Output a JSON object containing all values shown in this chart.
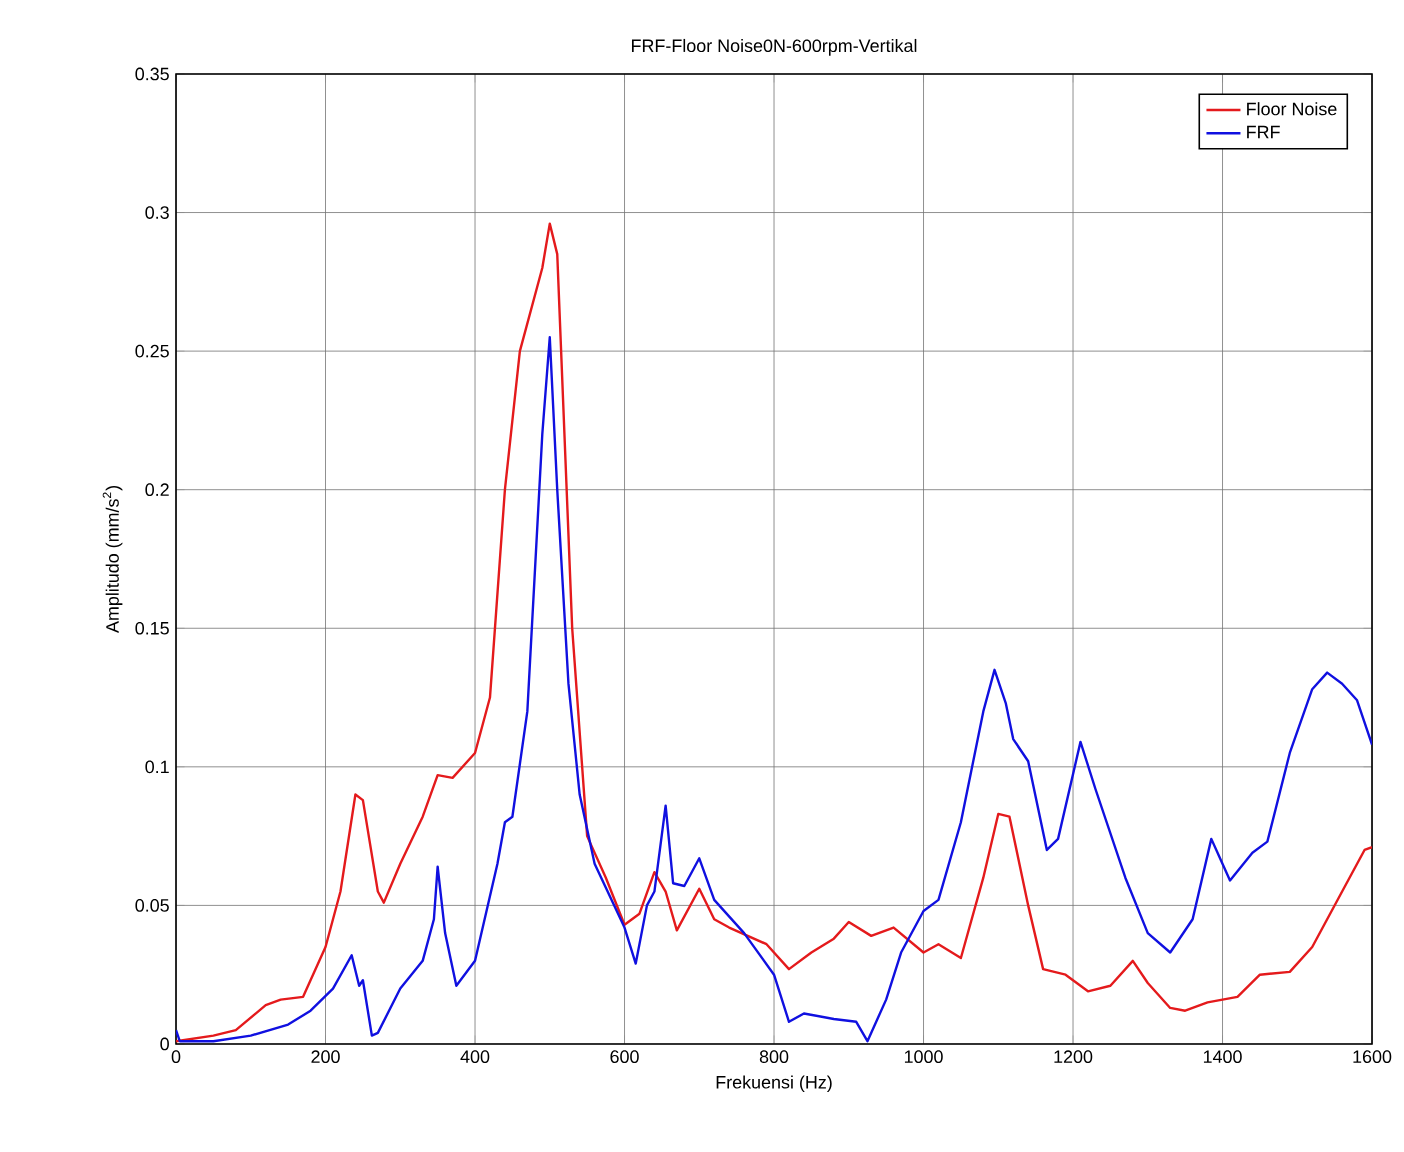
{
  "chart_data": {
    "type": "line",
    "title": "FRF-Floor Noise0N-600rpm-Vertikal",
    "xlabel": "Frekuensi (Hz)",
    "ylabel": "Amplitudo (mm/s$^{2}$)",
    "xlim": [
      0,
      1600
    ],
    "ylim": [
      0,
      0.35
    ],
    "xticks": [
      0,
      200,
      400,
      600,
      800,
      1000,
      1200,
      1400,
      1600
    ],
    "yticks": [
      0,
      0.05,
      0.1,
      0.15,
      0.2,
      0.25,
      0.3,
      0.35
    ],
    "grid": true,
    "legend": "top right",
    "line_style": "solid",
    "series": [
      {
        "name": "Floor Noise",
        "color": "#e41a1c",
        "x": [
          0,
          50,
          80,
          120,
          140,
          170,
          200,
          220,
          240,
          250,
          270,
          278,
          300,
          330,
          350,
          370,
          400,
          420,
          440,
          460,
          490,
          500,
          510,
          530,
          550,
          575,
          600,
          620,
          640,
          655,
          670,
          700,
          720,
          740,
          790,
          820,
          850,
          880,
          900,
          930,
          960,
          1000,
          1020,
          1050,
          1080,
          1100,
          1115,
          1140,
          1160,
          1190,
          1220,
          1250,
          1280,
          1300,
          1330,
          1350,
          1380,
          1420,
          1450,
          1490,
          1520,
          1560,
          1590,
          1600
        ],
        "values": [
          0.001,
          0.003,
          0.005,
          0.014,
          0.016,
          0.017,
          0.035,
          0.055,
          0.09,
          0.088,
          0.055,
          0.051,
          0.065,
          0.082,
          0.097,
          0.096,
          0.105,
          0.125,
          0.2,
          0.25,
          0.28,
          0.296,
          0.285,
          0.15,
          0.075,
          0.06,
          0.043,
          0.047,
          0.062,
          0.055,
          0.041,
          0.056,
          0.045,
          0.042,
          0.036,
          0.027,
          0.033,
          0.038,
          0.044,
          0.039,
          0.042,
          0.033,
          0.036,
          0.031,
          0.06,
          0.083,
          0.082,
          0.05,
          0.027,
          0.025,
          0.019,
          0.021,
          0.03,
          0.022,
          0.013,
          0.012,
          0.015,
          0.017,
          0.025,
          0.026,
          0.035,
          0.055,
          0.07,
          0.071
        ]
      },
      {
        "name": "FRF",
        "color": "#1010e0",
        "x": [
          0,
          5,
          50,
          100,
          150,
          180,
          210,
          235,
          245,
          250,
          262,
          270,
          300,
          330,
          345,
          350,
          360,
          375,
          400,
          430,
          440,
          450,
          470,
          490,
          500,
          510,
          525,
          540,
          560,
          600,
          615,
          630,
          640,
          655,
          665,
          680,
          700,
          720,
          760,
          800,
          820,
          840,
          880,
          910,
          925,
          950,
          970,
          1000,
          1020,
          1050,
          1080,
          1095,
          1110,
          1120,
          1140,
          1165,
          1180,
          1210,
          1230,
          1270,
          1300,
          1330,
          1360,
          1385,
          1395,
          1410,
          1440,
          1460,
          1490,
          1520,
          1540,
          1560,
          1580,
          1600
        ],
        "values": [
          0.005,
          0.001,
          0.001,
          0.003,
          0.007,
          0.012,
          0.02,
          0.032,
          0.021,
          0.023,
          0.003,
          0.004,
          0.02,
          0.03,
          0.045,
          0.064,
          0.04,
          0.021,
          0.03,
          0.065,
          0.08,
          0.082,
          0.12,
          0.22,
          0.255,
          0.2,
          0.13,
          0.09,
          0.065,
          0.042,
          0.029,
          0.05,
          0.055,
          0.086,
          0.058,
          0.057,
          0.067,
          0.052,
          0.04,
          0.025,
          0.008,
          0.011,
          0.009,
          0.008,
          0.001,
          0.016,
          0.033,
          0.048,
          0.052,
          0.08,
          0.12,
          0.135,
          0.123,
          0.11,
          0.102,
          0.07,
          0.074,
          0.109,
          0.092,
          0.06,
          0.04,
          0.033,
          0.045,
          0.074,
          0.068,
          0.059,
          0.069,
          0.073,
          0.105,
          0.128,
          0.134,
          0.13,
          0.124,
          0.108
        ]
      }
    ]
  }
}
